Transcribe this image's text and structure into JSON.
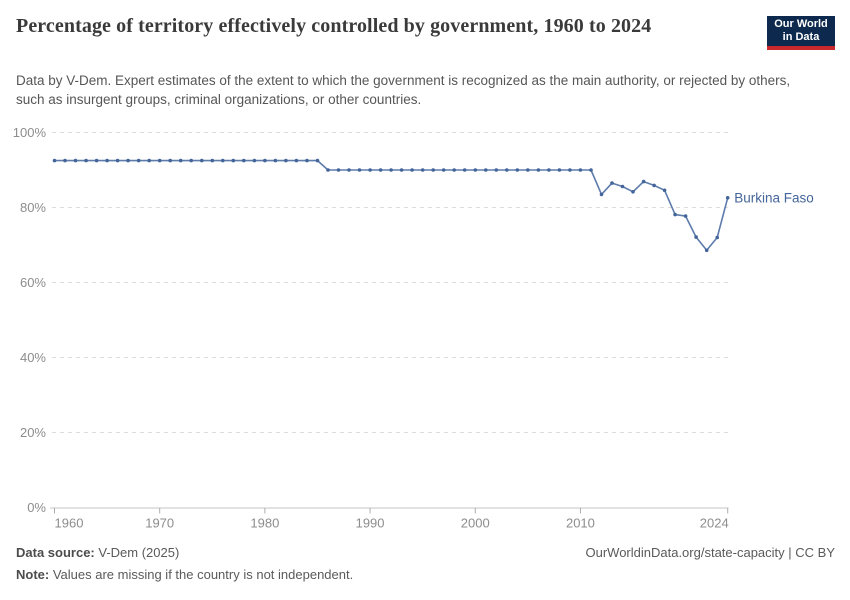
{
  "header": {
    "title": "Percentage of territory effectively controlled by government, 1960 to 2024",
    "subtitle": "Data by V-Dem. Expert estimates of the extent to which the government is recognized as the main authority, or rejected by others, such as insurgent groups, criminal organizations, or other countries.",
    "logo": {
      "line1": "Our World",
      "line2": "in Data"
    }
  },
  "chart_data": {
    "type": "line",
    "title": "Percentage of territory effectively controlled by government, 1960 to 2024",
    "xlabel": "",
    "ylabel": "",
    "xlim": [
      1960,
      2024
    ],
    "ylim": [
      0,
      100
    ],
    "x_ticks": [
      1960,
      1970,
      1980,
      1990,
      2000,
      2010,
      2024
    ],
    "y_ticks": [
      0,
      20,
      40,
      60,
      80,
      100
    ],
    "y_tick_suffix": "%",
    "grid": "horizontal-dashed",
    "legend_position": "end-of-line-label",
    "series": [
      {
        "name": "Burkina Faso",
        "color": "#44659A",
        "line_color": "#5E7CAB",
        "years": [
          1960,
          1961,
          1962,
          1963,
          1964,
          1965,
          1966,
          1967,
          1968,
          1969,
          1970,
          1971,
          1972,
          1973,
          1974,
          1975,
          1976,
          1977,
          1978,
          1979,
          1980,
          1981,
          1982,
          1983,
          1984,
          1985,
          1986,
          1987,
          1988,
          1989,
          1990,
          1991,
          1992,
          1993,
          1994,
          1995,
          1996,
          1997,
          1998,
          1999,
          2000,
          2001,
          2002,
          2003,
          2004,
          2005,
          2006,
          2007,
          2008,
          2009,
          2010,
          2011,
          2012,
          2013,
          2014,
          2015,
          2016,
          2017,
          2018,
          2019,
          2020,
          2021,
          2022,
          2023,
          2024
        ],
        "values": [
          92.5,
          92.5,
          92.5,
          92.5,
          92.5,
          92.5,
          92.5,
          92.5,
          92.5,
          92.5,
          92.5,
          92.5,
          92.5,
          92.5,
          92.5,
          92.5,
          92.5,
          92.5,
          92.5,
          92.5,
          92.5,
          92.5,
          92.5,
          92.5,
          92.5,
          92.5,
          90,
          90,
          90,
          90,
          90,
          90,
          90,
          90,
          90,
          90,
          90,
          90,
          90,
          90,
          90,
          90,
          90,
          90,
          90,
          90,
          90,
          90,
          90,
          90,
          90,
          90,
          83.5,
          86.5,
          85.6,
          84.2,
          86.9,
          85.9,
          84.6,
          78.1,
          77.7,
          72.1,
          68.6,
          72,
          82.6
        ]
      }
    ]
  },
  "footer": {
    "source_label": "Data source:",
    "source_value": " V-Dem (2025)",
    "note_label": "Note:",
    "note_value": " Values are missing if the country is not independent.",
    "link": "OurWorldinData.org/state-capacity | CC BY"
  },
  "colors": {
    "line": "#5E7CAB",
    "marker": "#44659A",
    "series_label": "#44659A",
    "logo_bg": "#0D2A4E",
    "logo_accent": "#C9282D",
    "gridline": "#DCDCDC",
    "axis_line": "#C6C6C6",
    "tick_mark": "#ADADAD",
    "tick_label": "#8D8D8D",
    "title_text": "#3A3A3A",
    "body_text": "#565656"
  }
}
